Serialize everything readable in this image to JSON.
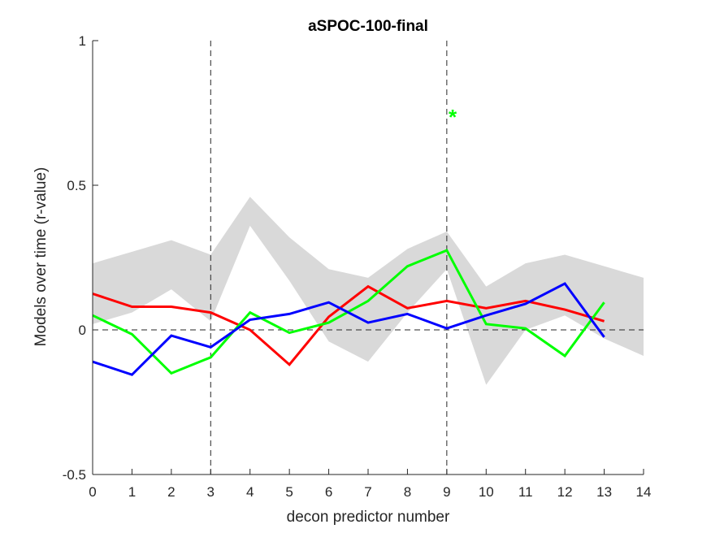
{
  "chart_data": {
    "type": "line",
    "title": "aSPOC-100-final",
    "xlabel": "decon predictor number",
    "ylabel": "Models over time (r-value)",
    "xlim": [
      0,
      14
    ],
    "ylim": [
      -0.5,
      1
    ],
    "xticks": [
      0,
      1,
      2,
      3,
      4,
      5,
      6,
      7,
      8,
      9,
      10,
      11,
      12,
      13,
      14
    ],
    "yticks": [
      -0.5,
      0,
      0.5,
      1
    ],
    "ytick_labels": [
      "-0.5",
      "0",
      "0.5",
      "1"
    ],
    "grid": false,
    "vlines": [
      3,
      9
    ],
    "hline": 0,
    "band": {
      "color": "#d9d9d9",
      "x": [
        0,
        1,
        2,
        3,
        4,
        5,
        6,
        7,
        8,
        9,
        10,
        11,
        12,
        13,
        14
      ],
      "upper": [
        0.23,
        0.27,
        0.31,
        0.26,
        0.46,
        0.32,
        0.21,
        0.18,
        0.28,
        0.34,
        0.15,
        0.23,
        0.26,
        0.22,
        0.18
      ],
      "lower": [
        0.02,
        0.06,
        0.14,
        0.03,
        0.36,
        0.17,
        -0.04,
        -0.11,
        0.06,
        0.21,
        -0.19,
        0.0,
        0.05,
        -0.03,
        -0.09
      ]
    },
    "series": [
      {
        "color": "#ff0000",
        "x": [
          0,
          1,
          2,
          3,
          4,
          5,
          6,
          7,
          8,
          9,
          10,
          11,
          12,
          13
        ],
        "values": [
          0.125,
          0.08,
          0.08,
          0.06,
          0.0,
          -0.12,
          0.045,
          0.15,
          0.075,
          0.1,
          0.075,
          0.1,
          0.07,
          0.03
        ]
      },
      {
        "color": "#00ff00",
        "x": [
          0,
          1,
          2,
          3,
          4,
          5,
          6,
          7,
          8,
          9,
          10,
          11,
          12,
          13
        ],
        "values": [
          0.05,
          -0.015,
          -0.15,
          -0.095,
          0.06,
          -0.01,
          0.025,
          0.1,
          0.22,
          0.275,
          0.02,
          0.005,
          -0.09,
          0.095
        ]
      },
      {
        "color": "#0000ff",
        "x": [
          0,
          1,
          2,
          3,
          4,
          5,
          6,
          7,
          8,
          9,
          10,
          11,
          12,
          13
        ],
        "values": [
          -0.11,
          -0.155,
          -0.02,
          -0.06,
          0.035,
          0.055,
          0.095,
          0.025,
          0.055,
          0.005,
          0.05,
          0.09,
          0.16,
          -0.025
        ]
      }
    ],
    "annotations": [
      {
        "text": "*",
        "x": 9.15,
        "y": 0.75,
        "color": "#00ff00"
      }
    ]
  }
}
